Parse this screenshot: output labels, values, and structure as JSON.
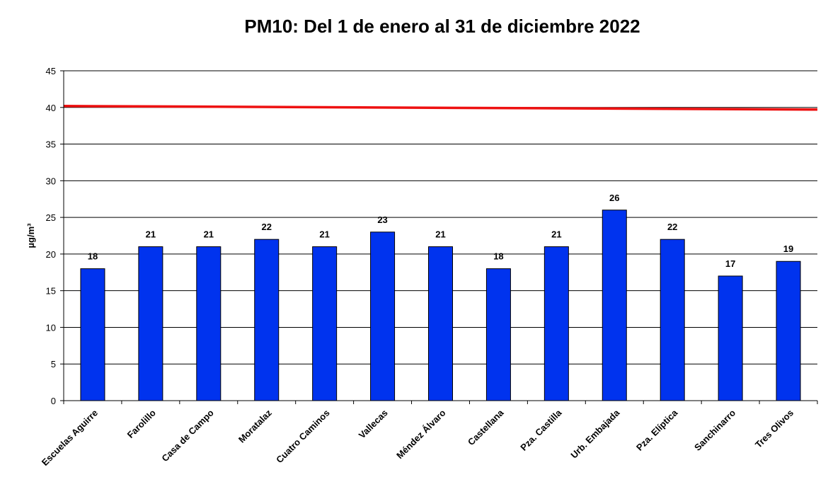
{
  "chart_data": {
    "type": "bar",
    "title": "PM10: Del 1 de enero al 31 de diciembre 2022",
    "ylabel": "µg/m³",
    "xlabel": "",
    "ylim": [
      0,
      45
    ],
    "yticks": [
      0,
      5,
      10,
      15,
      20,
      25,
      30,
      35,
      40,
      45
    ],
    "grid": true,
    "categories": [
      "Escuelas Aguirre",
      "Farolillo",
      "Casa de Campo",
      "Moratalaz",
      "Cuatro Caminos",
      "Vallecas",
      "Méndez Álvaro",
      "Castellana",
      "Pza. Castilla",
      "Urb. Embajada",
      "Pza. Elíptica",
      "Sanchinarro",
      "Tres Olivos"
    ],
    "series": [
      {
        "values": [
          18,
          21,
          21,
          22,
          21,
          23,
          21,
          18,
          21,
          26,
          22,
          17,
          19
        ],
        "color": "#0033ee"
      }
    ],
    "limit_line": {
      "value": 40,
      "color": "#ee1111"
    }
  }
}
